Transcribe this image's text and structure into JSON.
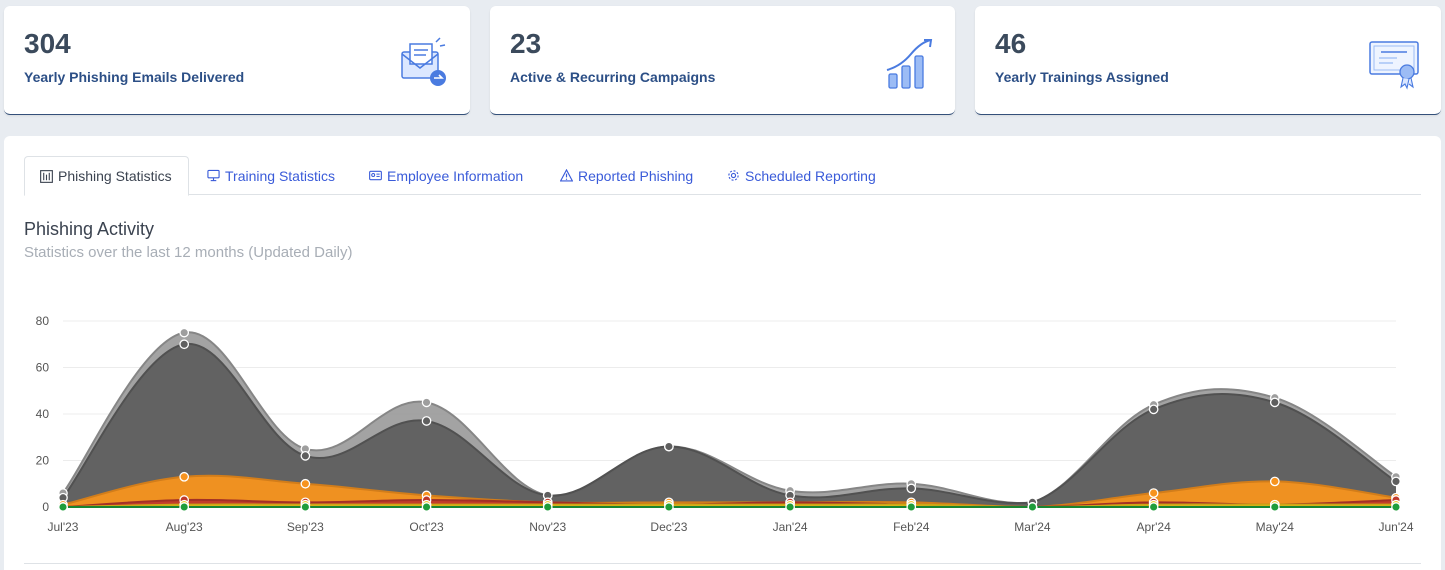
{
  "cards": [
    {
      "value": "304",
      "label": "Yearly Phishing Emails Delivered",
      "icon": "email-delivered-icon"
    },
    {
      "value": "23",
      "label": "Active & Recurring Campaigns",
      "icon": "growth-chart-icon"
    },
    {
      "value": "46",
      "label": "Yearly Trainings Assigned",
      "icon": "certificate-icon"
    }
  ],
  "tabs": [
    {
      "label": "Phishing Statistics",
      "icon": "chart-icon",
      "active": true
    },
    {
      "label": "Training Statistics",
      "icon": "monitor-icon",
      "active": false
    },
    {
      "label": "Employee Information",
      "icon": "id-card-icon",
      "active": false
    },
    {
      "label": "Reported Phishing",
      "icon": "warning-icon",
      "active": false
    },
    {
      "label": "Scheduled Reporting",
      "icon": "gear-icon",
      "active": false
    }
  ],
  "section": {
    "title": "Phishing Activity",
    "subtitle": "Statistics over the last 12 months (Updated Daily)"
  },
  "chart_data": {
    "type": "area",
    "categories": [
      "Jul'23",
      "Aug'23",
      "Sep'23",
      "Oct'23",
      "Nov'23",
      "Dec'23",
      "Jan'24",
      "Feb'24",
      "Mar'24",
      "Apr'24",
      "May'24",
      "Jun'24"
    ],
    "ylim": [
      0,
      80
    ],
    "yticks": [
      0,
      20,
      40,
      60,
      80
    ],
    "grid": true,
    "series": [
      {
        "color": "#9e9e9e",
        "values": [
          6,
          75,
          25,
          45,
          5,
          26,
          7,
          10,
          2,
          44,
          47,
          13
        ]
      },
      {
        "color": "#5f5f5f",
        "values": [
          4,
          70,
          22,
          37,
          5,
          26,
          5,
          8,
          2,
          42,
          45,
          11
        ]
      },
      {
        "color": "#f7931e",
        "values": [
          1,
          13,
          10,
          5,
          2,
          2,
          2,
          2,
          0,
          6,
          11,
          4
        ]
      },
      {
        "color": "#c0392b",
        "values": [
          0,
          3,
          2,
          3,
          2,
          1,
          2,
          1,
          0,
          2,
          1,
          3
        ]
      },
      {
        "color": "#f0c419",
        "values": [
          0,
          1,
          1,
          1,
          1,
          1,
          1,
          1,
          0,
          1,
          1,
          1
        ]
      },
      {
        "color": "#1f9d3a",
        "values": [
          0,
          0,
          0,
          0,
          0,
          0,
          0,
          0,
          0,
          0,
          0,
          0
        ]
      }
    ]
  }
}
